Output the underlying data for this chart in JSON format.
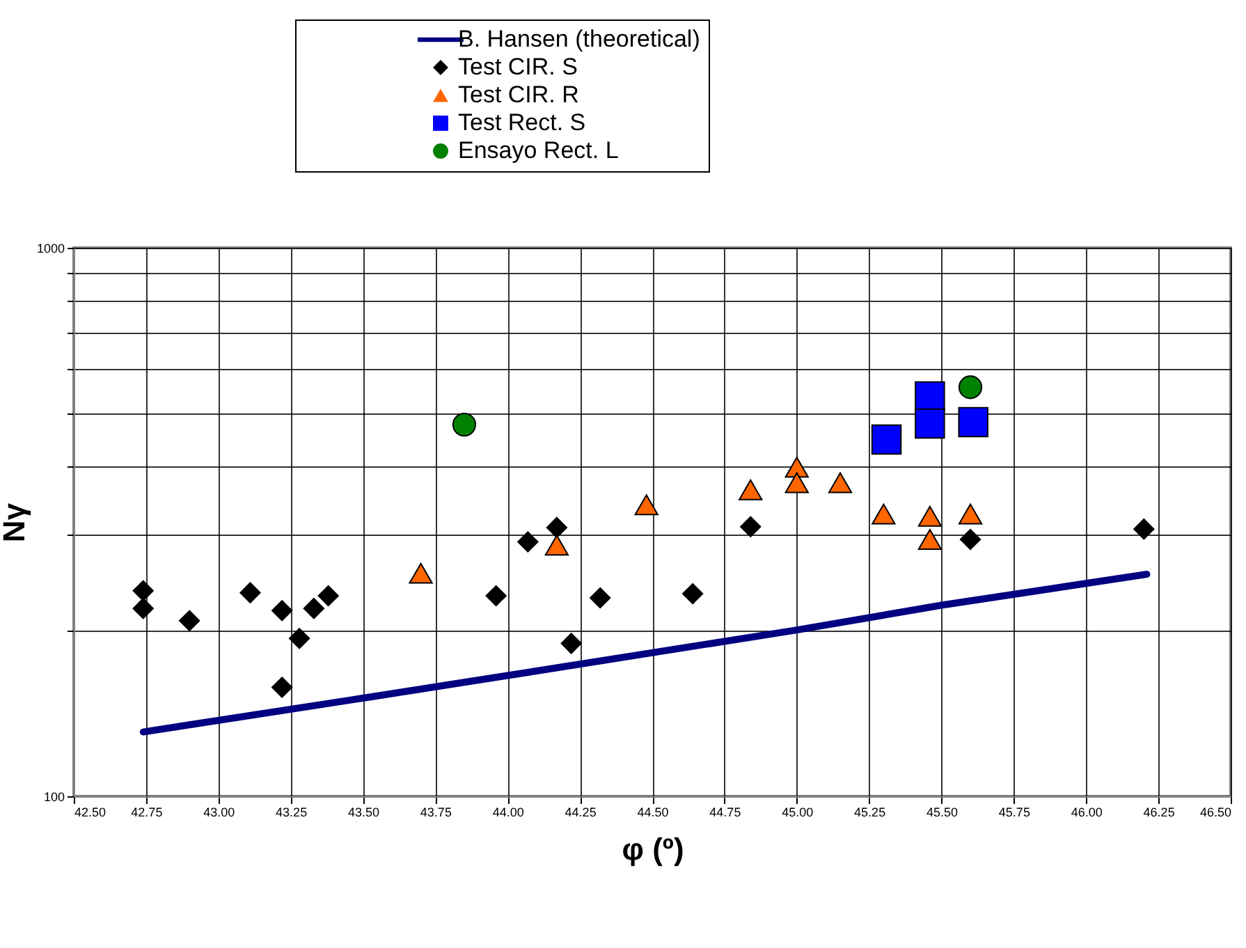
{
  "chart_data": {
    "type": "scatter",
    "xlabel": "φ (º)",
    "ylabel": "Nγ",
    "log": "y",
    "grid": true,
    "legend": "top",
    "xlim": [
      42.5,
      46.5
    ],
    "ylim": [
      100,
      1000
    ],
    "xticks": [
      {
        "value": 42.5,
        "label": "42.50"
      },
      {
        "value": 42.75,
        "label": "42.75"
      },
      {
        "value": 43.0,
        "label": "43.00"
      },
      {
        "value": 43.25,
        "label": "43.25"
      },
      {
        "value": 43.5,
        "label": "43.50"
      },
      {
        "value": 43.75,
        "label": "43.75"
      },
      {
        "value": 44.0,
        "label": "44.00"
      },
      {
        "value": 44.25,
        "label": "44.25"
      },
      {
        "value": 44.5,
        "label": "44.50"
      },
      {
        "value": 44.75,
        "label": "44.75"
      },
      {
        "value": 45.0,
        "label": "45.00"
      },
      {
        "value": 45.25,
        "label": "45.25"
      },
      {
        "value": 45.5,
        "label": "45.50"
      },
      {
        "value": 45.75,
        "label": "45.75"
      },
      {
        "value": 46.0,
        "label": "46.00"
      },
      {
        "value": 46.25,
        "label": "46.25"
      },
      {
        "value": 46.5,
        "label": "46.50"
      }
    ],
    "yticks": [
      100,
      {
        "value": 200,
        "label": null
      },
      {
        "value": 300,
        "label": null
      },
      {
        "value": 400,
        "label": null
      },
      {
        "value": 500,
        "label": null
      },
      {
        "value": 600,
        "label": null
      },
      {
        "value": 700,
        "label": null
      },
      {
        "value": 800,
        "label": null
      },
      {
        "value": 900,
        "label": null
      },
      1000
    ],
    "series": [
      {
        "name": "B. Hansen (theoretical)",
        "type": "line",
        "marker": "none",
        "line_style": "solid",
        "color": "#000080",
        "x": [
          42.74,
          43.5,
          44.0,
          45.0,
          45.5,
          46.21
        ],
        "values": [
          131,
          151,
          166,
          201,
          223,
          254
        ]
      },
      {
        "name": "Test CIR. S",
        "marker": "diamond",
        "color": "#000000",
        "x": [
          42.74,
          42.74,
          42.9,
          43.11,
          43.22,
          43.28,
          43.22,
          43.33,
          43.38,
          43.96,
          44.07,
          44.17,
          44.22,
          44.32,
          44.64,
          44.84,
          45.6,
          46.2
        ],
        "values": [
          237,
          220,
          209,
          235,
          218,
          194,
          158,
          220,
          232,
          232,
          291,
          309,
          190,
          230,
          234,
          310,
          294,
          307
        ]
      },
      {
        "name": "Test CIR. R",
        "marker": "triangle",
        "color": "#ff6600",
        "x": [
          43.7,
          44.17,
          44.48,
          44.84,
          45.0,
          45.0,
          45.15,
          45.3,
          45.46,
          45.46,
          45.6
        ],
        "values": [
          255,
          287,
          340,
          362,
          398,
          373,
          373,
          327,
          324,
          294,
          327
        ]
      },
      {
        "name": "Test Rect. S",
        "marker": "square",
        "color": "#0000ff",
        "x": [
          45.31,
          45.46,
          45.46,
          45.61
        ],
        "values": [
          447,
          536,
          478,
          481
        ]
      },
      {
        "name": "Ensayo Rect. L",
        "marker": "circle",
        "color": "#008000",
        "x": [
          43.85,
          45.6
        ],
        "values": [
          476,
          557
        ]
      }
    ]
  }
}
